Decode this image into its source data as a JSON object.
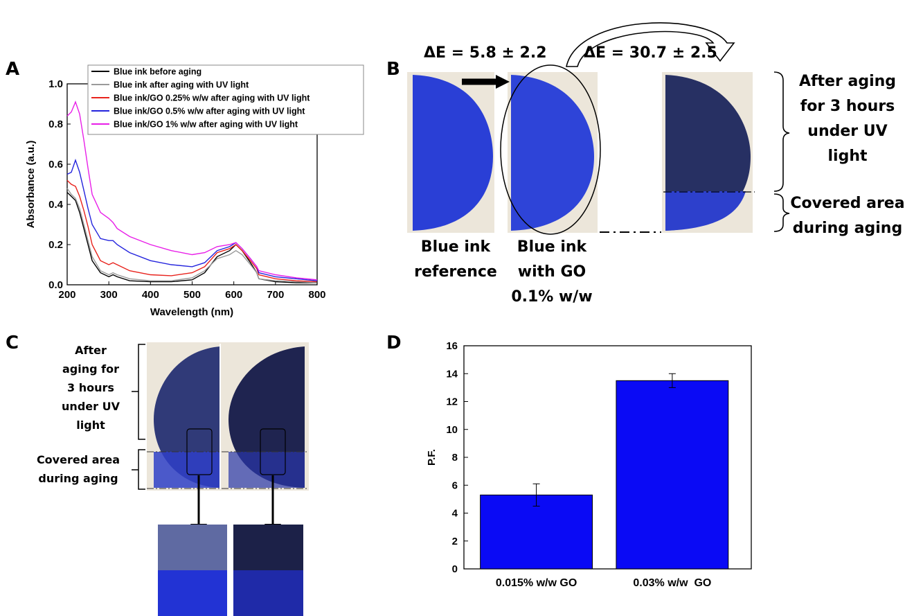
{
  "panels": {
    "A": "A",
    "B": "B",
    "C": "C",
    "D": "D"
  },
  "colors": {
    "ink_blue": "#2a3fd6",
    "aged_blue": "#273063",
    "bar_blue": "#0a0af5",
    "beige": "#ece6da"
  },
  "chart_data": [
    {
      "type": "line",
      "xlabel": "Wavelength (nm)",
      "ylabel": "Absorbance (a.u.)",
      "xlim": [
        200,
        800
      ],
      "ylim": [
        0,
        1.0
      ],
      "xticks": [
        "200",
        "300",
        "400",
        "500",
        "600",
        "700",
        "800"
      ],
      "yticks": [
        "0.0",
        "0.2",
        "0.4",
        "0.6",
        "0.8",
        "1.0"
      ],
      "grid": false,
      "legend_position": "top",
      "series": [
        {
          "name": "Blue ink before aging",
          "color": "#000000",
          "x": [
            200,
            210,
            220,
            230,
            240,
            250,
            260,
            280,
            300,
            310,
            320,
            350,
            400,
            450,
            500,
            530,
            560,
            590,
            605,
            620,
            640,
            655,
            660,
            700,
            750,
            800
          ],
          "y": [
            0.46,
            0.44,
            0.42,
            0.36,
            0.28,
            0.2,
            0.12,
            0.06,
            0.04,
            0.05,
            0.04,
            0.02,
            0.015,
            0.015,
            0.025,
            0.06,
            0.14,
            0.17,
            0.2,
            0.17,
            0.11,
            0.06,
            0.03,
            0.015,
            0.01,
            0.01
          ]
        },
        {
          "name": "Blue ink after aging with UV light",
          "color": "#9a9a9a",
          "x": [
            200,
            210,
            220,
            230,
            240,
            250,
            260,
            280,
            300,
            310,
            320,
            350,
            400,
            450,
            500,
            530,
            560,
            590,
            605,
            620,
            640,
            655,
            660,
            700,
            750,
            800
          ],
          "y": [
            0.48,
            0.45,
            0.43,
            0.38,
            0.3,
            0.22,
            0.14,
            0.07,
            0.05,
            0.06,
            0.05,
            0.03,
            0.02,
            0.02,
            0.035,
            0.07,
            0.13,
            0.15,
            0.17,
            0.15,
            0.1,
            0.06,
            0.03,
            0.02,
            0.015,
            0.01
          ]
        },
        {
          "name": "Blue ink/GO 0.25% w/w after aging with UV light",
          "color": "#e8221c",
          "x": [
            200,
            210,
            220,
            230,
            240,
            250,
            260,
            280,
            300,
            310,
            320,
            350,
            400,
            450,
            500,
            530,
            560,
            590,
            605,
            620,
            640,
            655,
            660,
            700,
            750,
            800
          ],
          "y": [
            0.52,
            0.5,
            0.49,
            0.44,
            0.37,
            0.29,
            0.2,
            0.12,
            0.1,
            0.11,
            0.1,
            0.07,
            0.05,
            0.045,
            0.06,
            0.09,
            0.16,
            0.18,
            0.2,
            0.17,
            0.12,
            0.08,
            0.05,
            0.03,
            0.02,
            0.015
          ]
        },
        {
          "name": "Blue ink/GO 0.5% w/w after aging with UV light",
          "color": "#2323dd",
          "x": [
            200,
            210,
            220,
            230,
            240,
            250,
            260,
            280,
            300,
            310,
            320,
            350,
            400,
            450,
            500,
            530,
            560,
            590,
            605,
            620,
            640,
            655,
            660,
            700,
            750,
            800
          ],
          "y": [
            0.55,
            0.56,
            0.62,
            0.56,
            0.47,
            0.38,
            0.3,
            0.23,
            0.22,
            0.22,
            0.2,
            0.16,
            0.12,
            0.1,
            0.09,
            0.11,
            0.17,
            0.19,
            0.21,
            0.18,
            0.13,
            0.09,
            0.06,
            0.04,
            0.03,
            0.02
          ]
        },
        {
          "name": "Blue ink/GO 1% w/w after aging with UV light",
          "color": "#e81ee8",
          "x": [
            200,
            210,
            220,
            230,
            240,
            250,
            260,
            280,
            300,
            310,
            320,
            350,
            400,
            450,
            500,
            530,
            560,
            590,
            605,
            620,
            640,
            655,
            660,
            700,
            750,
            800
          ],
          "y": [
            0.84,
            0.86,
            0.91,
            0.85,
            0.72,
            0.58,
            0.45,
            0.36,
            0.33,
            0.31,
            0.28,
            0.24,
            0.2,
            0.17,
            0.15,
            0.16,
            0.19,
            0.2,
            0.21,
            0.18,
            0.13,
            0.09,
            0.07,
            0.05,
            0.035,
            0.025
          ]
        }
      ]
    },
    {
      "type": "bar",
      "ylabel": "P.F.",
      "categories": [
        "0.015% w/w GO",
        "0.03% w/w  GO"
      ],
      "values": [
        5.3,
        13.5
      ],
      "errors": [
        0.8,
        0.5
      ],
      "ylim": [
        0,
        16
      ],
      "yticks": [
        "0",
        "2",
        "4",
        "6",
        "8",
        "10",
        "12",
        "14",
        "16"
      ],
      "bar_color": "#0a0af5"
    }
  ],
  "panelB": {
    "delta1": "ΔE = 5.8 ± 2.2",
    "delta2": "ΔE = 30.7 ± 2.5",
    "label_ref": [
      "Blue ink",
      "reference"
    ],
    "label_go": [
      "Blue ink",
      "with GO",
      "0.1% w/w"
    ],
    "label_after": [
      "After aging",
      "for 3 hours",
      "under UV",
      "light"
    ],
    "label_covered": [
      "Covered area",
      "during aging"
    ]
  },
  "panelC": {
    "label_after": [
      "After",
      "aging for",
      "3 hours",
      "under UV",
      "light"
    ],
    "label_covered": [
      "Covered area",
      "during aging"
    ]
  }
}
